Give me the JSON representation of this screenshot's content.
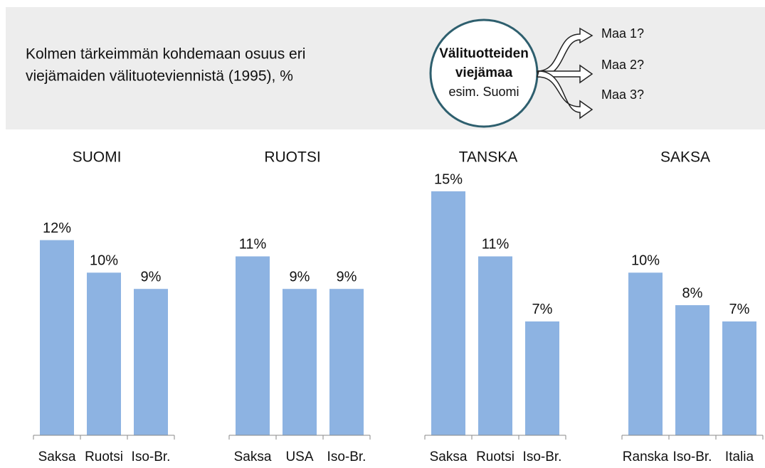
{
  "header": {
    "title_lines": [
      "Kolmen tärkeimmän kohdemaan osuus eri",
      "viejämaiden välituoteviennistä (1995), %"
    ],
    "diagram": {
      "circle_lines": [
        "Välituotteiden",
        "viejämaa",
        "esim. Suomi"
      ],
      "outputs": [
        "Maa 1?",
        "Maa 2?",
        "Maa 3?"
      ]
    }
  },
  "chart_data": [
    {
      "type": "bar",
      "title": "SUOMI",
      "categories": [
        "Saksa",
        "Ruotsi",
        "Iso-Br."
      ],
      "values": [
        12,
        10,
        9
      ],
      "value_labels": [
        "12%",
        "10%",
        "9%"
      ],
      "color": "#8db3e2",
      "ylim": [
        0,
        15
      ]
    },
    {
      "type": "bar",
      "title": "RUOTSI",
      "categories": [
        "Saksa",
        "USA",
        "Iso-Br."
      ],
      "values": [
        11,
        9,
        9
      ],
      "value_labels": [
        "11%",
        "9%",
        "9%"
      ],
      "color": "#8db3e2",
      "ylim": [
        0,
        15
      ]
    },
    {
      "type": "bar",
      "title": "TANSKA",
      "categories": [
        "Saksa",
        "Ruotsi",
        "Iso-Br."
      ],
      "values": [
        15,
        11,
        7
      ],
      "value_labels": [
        "15%",
        "11%",
        "7%"
      ],
      "color": "#8db3e2",
      "ylim": [
        0,
        15
      ]
    },
    {
      "type": "bar",
      "title": "SAKSA",
      "categories": [
        "Ranska",
        "Iso-Br.",
        "Italia"
      ],
      "values": [
        10,
        8,
        7
      ],
      "value_labels": [
        "10%",
        "8%",
        "7%"
      ],
      "color": "#8db3e2",
      "ylim": [
        0,
        15
      ]
    }
  ]
}
